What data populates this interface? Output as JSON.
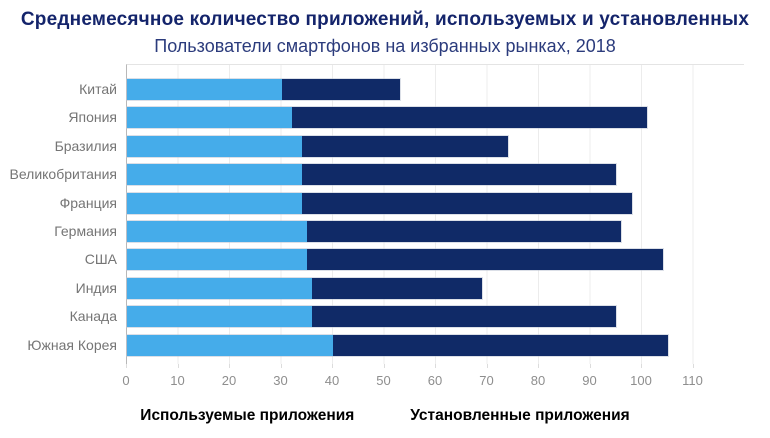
{
  "title": "Среднемесячное количество приложений, используемых и установленных",
  "subtitle": "Пользователи смартфонов на избранных рынках, 2018",
  "colors": {
    "used": "#45acea",
    "installed": "#102a67",
    "title_text": "#14246b",
    "subtitle_text": "#2b3b7c",
    "axis_text": "#8e8e8e",
    "category_text": "#757575",
    "gridline": "#ececec"
  },
  "legend": {
    "used_label": "Используемые приложения",
    "installed_label": "Установленные приложения"
  },
  "chart_data": {
    "type": "bar",
    "orientation": "horizontal",
    "stacked": true,
    "grid": "vertical, every 10 units",
    "legend_position": "bottom",
    "title": "Среднемесячное количество приложений, используемых и установленных",
    "subtitle": "Пользователи смартфонов на избранных рынках, 2018",
    "xlabel": "",
    "ylabel": "",
    "xlim": [
      0,
      120
    ],
    "x_ticks": [
      "0",
      "10",
      "20",
      "30",
      "40",
      "50",
      "60",
      "70",
      "80",
      "90",
      "100",
      "110"
    ],
    "categories": [
      "Китай",
      "Япония",
      "Бразилия",
      "Великобритания",
      "Франция",
      "Германия",
      "США",
      "Индия",
      "Канада",
      "Южная Корея"
    ],
    "series": [
      {
        "name": "Используемые приложения",
        "color": "#45acea",
        "values": [
          30,
          32,
          34,
          34,
          34,
          35,
          35,
          36,
          36,
          40
        ]
      },
      {
        "name": "Установленные приложения",
        "color": "#102a67",
        "note": "значения — правый край полосы (общая длина)",
        "values": [
          53,
          101,
          74,
          95,
          98,
          96,
          104,
          69,
          95,
          105
        ]
      }
    ]
  }
}
